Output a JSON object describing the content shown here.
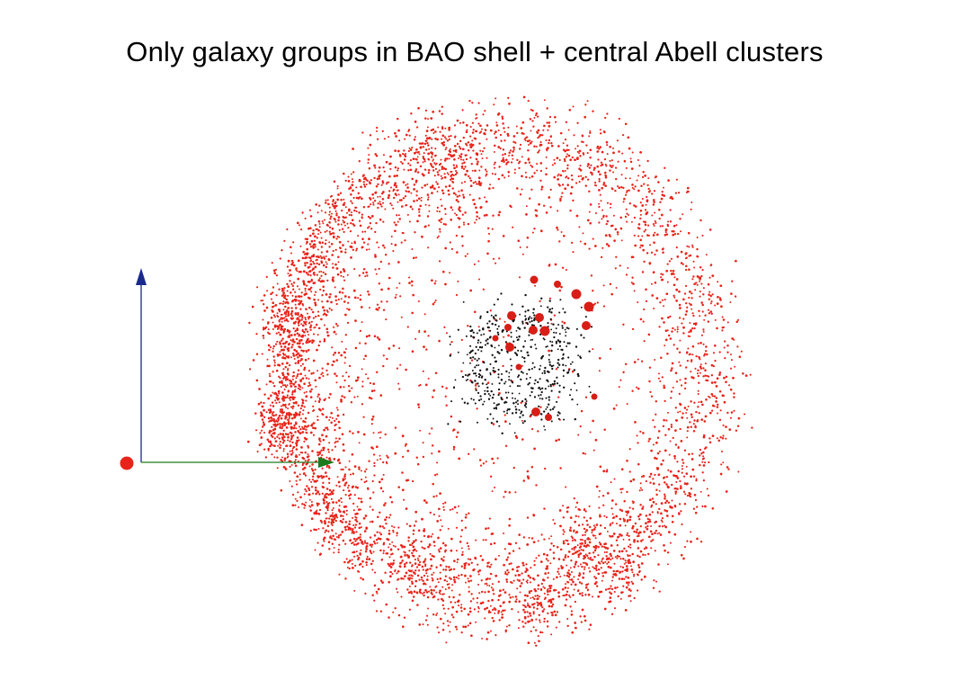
{
  "title": "Only galaxy groups in BAO shell + central Abell clusters",
  "colors": {
    "background": "#ffffff",
    "shell_groups": "#e8241a",
    "central_galaxies": "#111111",
    "abell_clusters": "#d81e16",
    "observer": "#e8241a",
    "axis_vertical": "#1a2a8c",
    "axis_horizontal": "#1d7a1d"
  },
  "legend": {
    "shell_groups": "galaxy groups in BAO shell",
    "central_galaxies": "central galaxies",
    "abell_clusters": "central Abell clusters",
    "observer": "observer",
    "axis_vertical": "vertical axis",
    "axis_horizontal": "horizontal axis"
  }
}
